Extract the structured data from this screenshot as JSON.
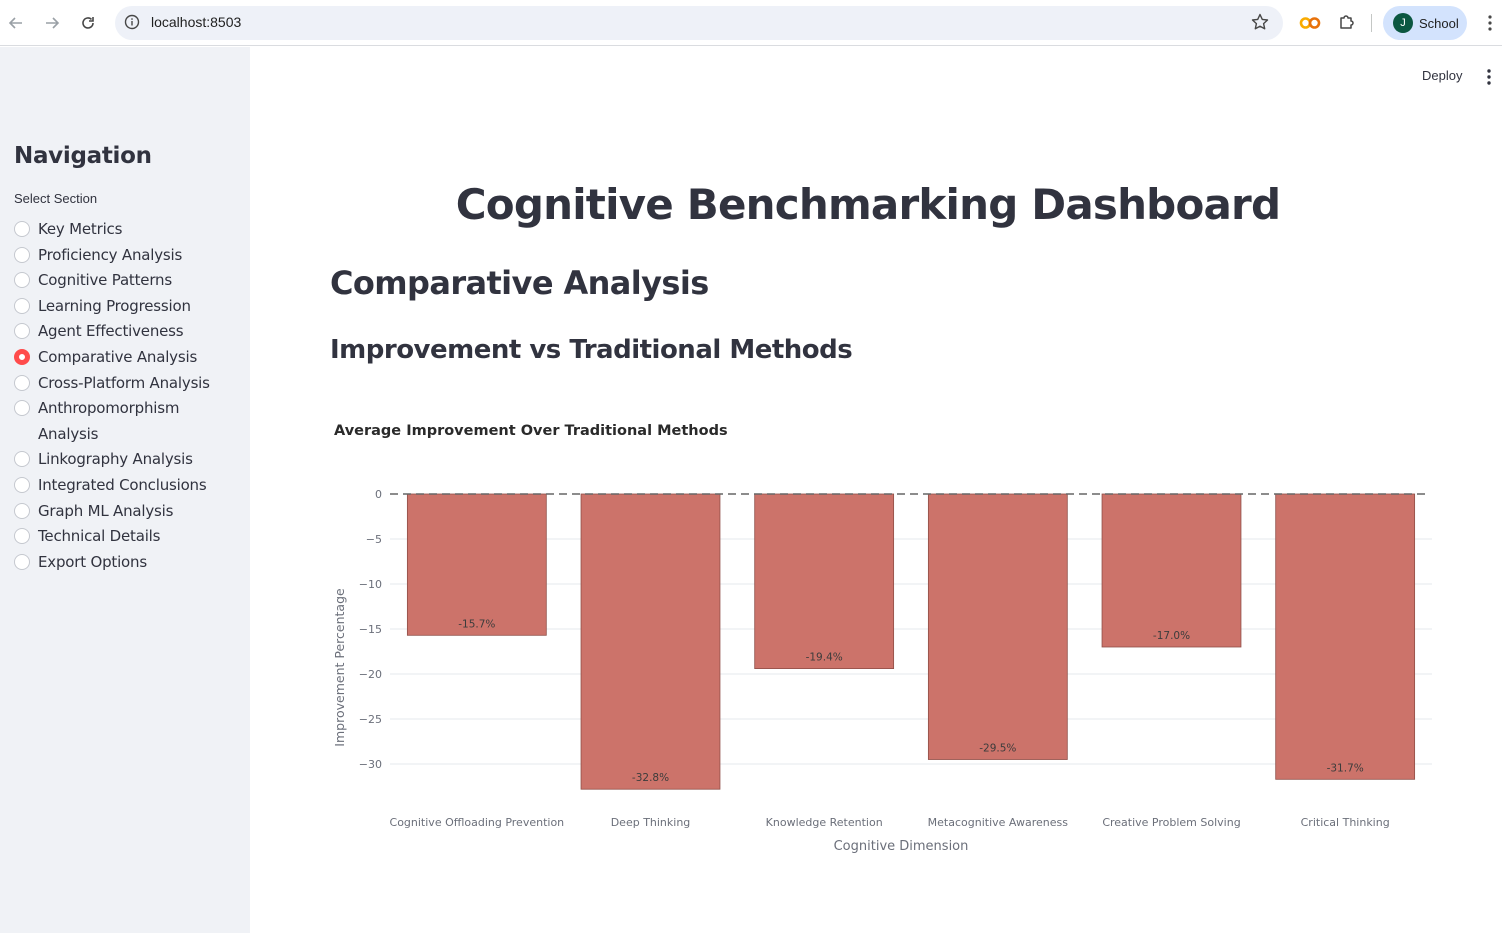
{
  "browser": {
    "url": "localhost:8503",
    "profile_initial": "J",
    "profile_name": "School",
    "icons": [
      "back-arrow-icon",
      "forward-arrow-icon",
      "reload-icon",
      "site-info-icon",
      "bookmark-star-icon",
      "extension-co-icon",
      "extensions-puzzle-icon",
      "more-vert-icon"
    ]
  },
  "sidebar": {
    "title": "Navigation",
    "label": "Select Section",
    "items": [
      {
        "label": "Key Metrics",
        "selected": false
      },
      {
        "label": "Proficiency Analysis",
        "selected": false
      },
      {
        "label": "Cognitive Patterns",
        "selected": false
      },
      {
        "label": "Learning Progression",
        "selected": false
      },
      {
        "label": "Agent Effectiveness",
        "selected": false
      },
      {
        "label": "Comparative Analysis",
        "selected": true
      },
      {
        "label": "Cross-Platform Analysis",
        "selected": false
      },
      {
        "label": "Anthropomorphism Analysis",
        "selected": false
      },
      {
        "label": "Linkography Analysis",
        "selected": false
      },
      {
        "label": "Integrated Conclusions",
        "selected": false
      },
      {
        "label": "Graph ML Analysis",
        "selected": false
      },
      {
        "label": "Technical Details",
        "selected": false
      },
      {
        "label": "Export Options",
        "selected": false
      }
    ],
    "accent": "#ff4b4b"
  },
  "header": {
    "deploy_label": "Deploy"
  },
  "main": {
    "page_title": "Cognitive Benchmarking Dashboard",
    "section_title": "Comparative Analysis",
    "subsection_title": "Improvement vs Traditional Methods"
  },
  "chart_data": {
    "type": "bar",
    "title": "Average Improvement Over Traditional Methods",
    "xlabel": "Cognitive Dimension",
    "ylabel": "Improvement Percentage",
    "categories": [
      "Cognitive Offloading Prevention",
      "Deep Thinking",
      "Knowledge Retention",
      "Metacognitive Awareness",
      "Creative Problem Solving",
      "Critical Thinking"
    ],
    "values": [
      -15.7,
      -32.8,
      -19.4,
      -29.5,
      -17.0,
      -31.7
    ],
    "data_labels": [
      "-15.7%",
      "-32.8%",
      "-19.4%",
      "-29.5%",
      "-17.0%",
      "-31.7%"
    ],
    "yticks": [
      0,
      -5,
      -10,
      -15,
      -20,
      -25,
      -30
    ],
    "ytick_labels": [
      "0",
      "−5",
      "−10",
      "−15",
      "−20",
      "−25",
      "−30"
    ],
    "ylim": [
      -34,
      1
    ],
    "bar_color": "#cc736a",
    "reference_line": 0,
    "grid": true
  }
}
